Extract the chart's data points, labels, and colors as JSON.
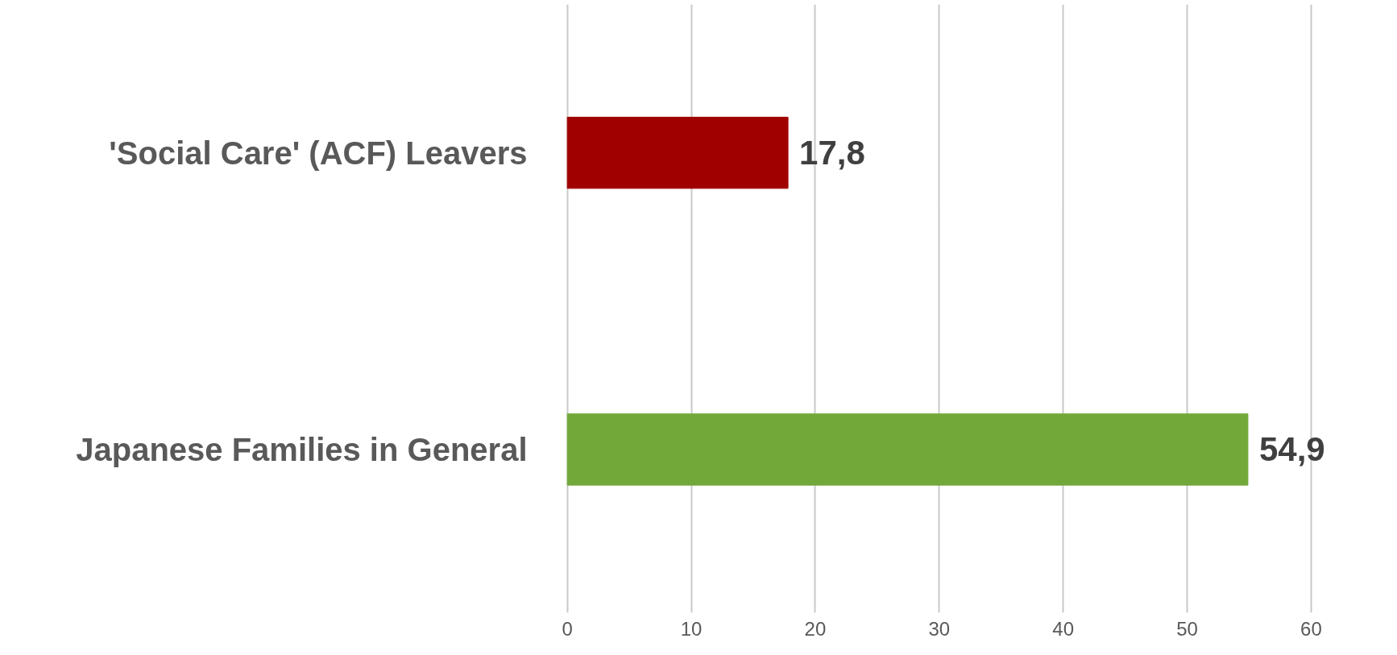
{
  "chart_data": {
    "type": "bar",
    "orientation": "horizontal",
    "categories": [
      "'Social Care' (ACF) Leavers",
      "Japanese Families in General"
    ],
    "values": [
      17.8,
      54.9
    ],
    "colors": [
      "#a00000",
      "#72a83a"
    ],
    "value_labels": [
      "17,8",
      "54,9"
    ],
    "xlim": [
      0,
      60
    ],
    "xticks": [
      0,
      10,
      20,
      30,
      40,
      50,
      60
    ],
    "grid": "x"
  }
}
